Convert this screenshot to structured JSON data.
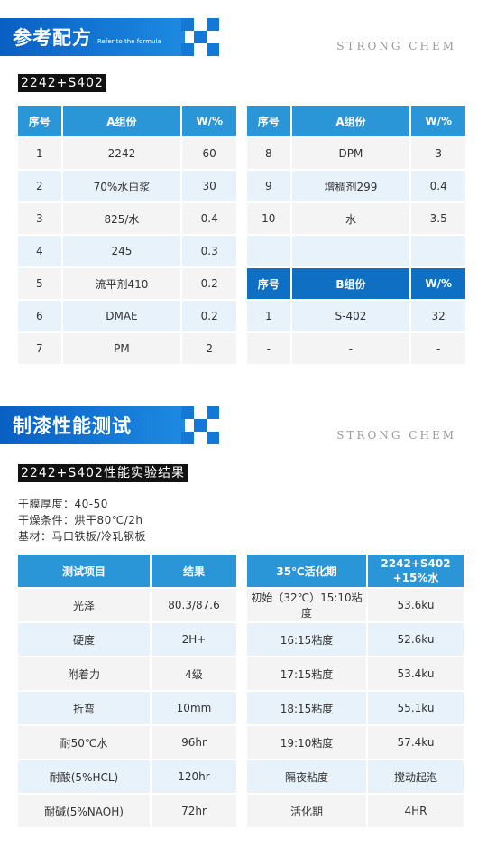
{
  "section1": {
    "title": "参考配方",
    "subtitle": "Refer to the formula",
    "brand": "STRONG CHEM",
    "tag": "2242+S402"
  },
  "formula": {
    "left_headers": [
      "序号",
      "A组份",
      "W/%"
    ],
    "left_rows": [
      [
        "1",
        "2242",
        "60"
      ],
      [
        "2",
        "70%水白浆",
        "30"
      ],
      [
        "3",
        "825/水",
        "0.4"
      ],
      [
        "4",
        "245",
        "0.3"
      ],
      [
        "5",
        "流平剂410",
        "0.2"
      ],
      [
        "6",
        "DMAE",
        "0.2"
      ],
      [
        "7",
        "PM",
        "2"
      ]
    ],
    "right_headers": [
      "序号",
      "A组份",
      "W/%"
    ],
    "right_rows": [
      [
        "8",
        "DPM",
        "3"
      ],
      [
        "9",
        "增稠剂299",
        "0.4"
      ],
      [
        "10",
        "水",
        "3.5"
      ]
    ],
    "b_headers": [
      "序号",
      "B组份",
      "W/%"
    ],
    "b_rows": [
      [
        "1",
        "S-402",
        "32"
      ],
      [
        "-",
        "-",
        "-"
      ]
    ]
  },
  "section2": {
    "title": "制漆性能测试",
    "brand": "STRONG CHEM",
    "tag": "2242+S402性能实验结果",
    "info": [
      "干膜厚度：40-50",
      "干燥条件：烘干80℃/2h",
      "基材：马口铁板/冷轧钢板"
    ]
  },
  "tests": {
    "headers": [
      "测试项目",
      "结果"
    ],
    "rows": [
      [
        "光泽",
        "80.3/87.6"
      ],
      [
        "硬度",
        "2H+"
      ],
      [
        "附着力",
        "4级"
      ],
      [
        "折弯",
        "10mm"
      ],
      [
        "耐50℃水",
        "96hr"
      ],
      [
        "耐酸(5%HCL)",
        "120hr"
      ],
      [
        "耐碱(5%NAOH)",
        "72hr"
      ]
    ]
  },
  "activation": {
    "headers": [
      "35℃活化期",
      "2242+S402 +15%水"
    ],
    "rows": [
      [
        "初始（32℃）15:10粘度",
        "53.6ku"
      ],
      [
        "16:15粘度",
        "52.6ku"
      ],
      [
        "17:15粘度",
        "53.4ku"
      ],
      [
        "18:15粘度",
        "55.1ku"
      ],
      [
        "19:10粘度",
        "57.4ku"
      ],
      [
        "隔夜粘度",
        "搅动起泡"
      ],
      [
        "活化期",
        "4HR"
      ]
    ]
  }
}
